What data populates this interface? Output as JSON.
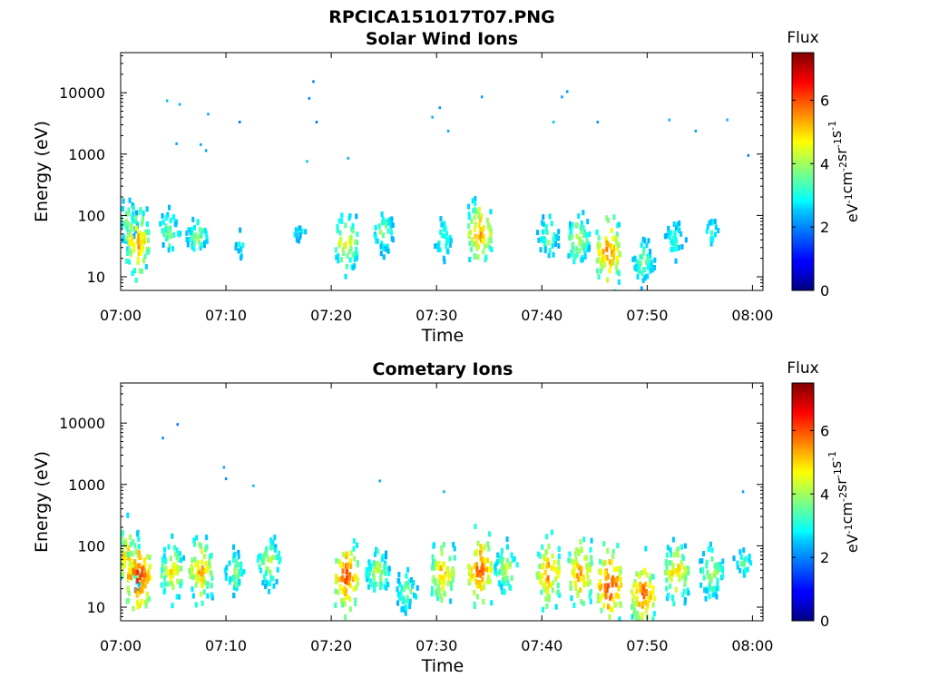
{
  "figure_title": "RPCICA151017T07.PNG",
  "colorbar": {
    "label": "Flux",
    "unit_parts": [
      {
        "text": "eV",
        "sup": false
      },
      {
        "text": "-1",
        "sup": true
      },
      {
        "text": "cm",
        "sup": false
      },
      {
        "text": "-2",
        "sup": true
      },
      {
        "text": "sr",
        "sup": false
      },
      {
        "text": "-1",
        "sup": true
      },
      {
        "text": "s",
        "sup": false
      },
      {
        "text": "-1",
        "sup": true
      }
    ],
    "ticks": [
      "0",
      "2",
      "4",
      "6"
    ],
    "range": [
      0,
      7.5
    ],
    "colormap": "jet"
  },
  "chart_data": [
    {
      "type": "heatmap",
      "title": "Solar Wind Ions",
      "xlabel": "Time",
      "ylabel": "Energy (eV)",
      "ylog": true,
      "ylim": [
        6,
        45000
      ],
      "xlim": [
        "07:00",
        "08:01"
      ],
      "xticks": [
        "07:00",
        "07:10",
        "07:20",
        "07:30",
        "07:40",
        "07:50",
        "08:00"
      ],
      "yticks": [
        "10",
        "100",
        "1000",
        "10000"
      ],
      "blobs": [
        {
          "t": 0.5,
          "e": 90,
          "flux": 4
        },
        {
          "t": 1.5,
          "e": 40,
          "flux": 5.6
        },
        {
          "t": 4.5,
          "e": 60,
          "flux": 4
        },
        {
          "t": 7.2,
          "e": 50,
          "flux": 4
        },
        {
          "t": 11.3,
          "e": 35,
          "flux": 3
        },
        {
          "t": 16.8,
          "e": 60,
          "flux": 3
        },
        {
          "t": 21.3,
          "e": 40,
          "flux": 5
        },
        {
          "t": 24.8,
          "e": 60,
          "flux": 4
        },
        {
          "t": 30.5,
          "e": 45,
          "flux": 3.6
        },
        {
          "t": 34.0,
          "e": 55,
          "flux": 5.6
        },
        {
          "t": 40.5,
          "e": 50,
          "flux": 4
        },
        {
          "t": 43.3,
          "e": 45,
          "flux": 4.5
        },
        {
          "t": 46.2,
          "e": 28,
          "flux": 6
        },
        {
          "t": 49.5,
          "e": 20,
          "flux": 4
        },
        {
          "t": 52.5,
          "e": 45,
          "flux": 3.5
        },
        {
          "t": 56.0,
          "e": 60,
          "flux": 3.2
        }
      ],
      "scatter": [
        {
          "t": 4.3,
          "e": 7800
        },
        {
          "t": 5.5,
          "e": 6800
        },
        {
          "t": 5.2,
          "e": 1550
        },
        {
          "t": 7.5,
          "e": 1500
        },
        {
          "t": 8.2,
          "e": 4700
        },
        {
          "t": 11.2,
          "e": 3500
        },
        {
          "t": 17.8,
          "e": 8500
        },
        {
          "t": 18.2,
          "e": 16000
        },
        {
          "t": 18.5,
          "e": 3500
        },
        {
          "t": 17.6,
          "e": 800
        },
        {
          "t": 21.5,
          "e": 900
        },
        {
          "t": 29.5,
          "e": 4200
        },
        {
          "t": 30.2,
          "e": 6000
        },
        {
          "t": 31.0,
          "e": 2500
        },
        {
          "t": 34.2,
          "e": 9000
        },
        {
          "t": 41.8,
          "e": 9000
        },
        {
          "t": 42.3,
          "e": 11000
        },
        {
          "t": 41.0,
          "e": 3500
        },
        {
          "t": 45.2,
          "e": 3500
        },
        {
          "t": 52.0,
          "e": 3800
        },
        {
          "t": 54.5,
          "e": 2500
        },
        {
          "t": 57.5,
          "e": 3800
        },
        {
          "t": 59.5,
          "e": 1000
        },
        {
          "t": 8.0,
          "e": 1200
        }
      ]
    },
    {
      "type": "heatmap",
      "title": "Cometary Ions",
      "xlabel": "Time",
      "ylabel": "Energy (eV)",
      "ylog": true,
      "ylim": [
        6,
        45000
      ],
      "xlim": [
        "07:00",
        "08:01"
      ],
      "xticks": [
        "07:00",
        "07:10",
        "07:20",
        "07:30",
        "07:40",
        "07:50",
        "08:00"
      ],
      "yticks": [
        "10",
        "100",
        "1000",
        "10000"
      ],
      "blobs": [
        {
          "t": 0.6,
          "e": 70,
          "flux": 5.5
        },
        {
          "t": 1.6,
          "e": 35,
          "flux": 6.5
        },
        {
          "t": 4.8,
          "e": 40,
          "flux": 5
        },
        {
          "t": 7.5,
          "e": 45,
          "flux": 5.5
        },
        {
          "t": 10.8,
          "e": 40,
          "flux": 4
        },
        {
          "t": 14.0,
          "e": 60,
          "flux": 4.5
        },
        {
          "t": 21.3,
          "e": 35,
          "flux": 6.2
        },
        {
          "t": 24.3,
          "e": 40,
          "flux": 4.5
        },
        {
          "t": 27.0,
          "e": 20,
          "flux": 4
        },
        {
          "t": 30.5,
          "e": 40,
          "flux": 5.5
        },
        {
          "t": 34.0,
          "e": 45,
          "flux": 6.2
        },
        {
          "t": 36.5,
          "e": 45,
          "flux": 4.5
        },
        {
          "t": 40.5,
          "e": 40,
          "flux": 5.7
        },
        {
          "t": 43.5,
          "e": 40,
          "flux": 5.8
        },
        {
          "t": 46.3,
          "e": 25,
          "flux": 6.5
        },
        {
          "t": 49.5,
          "e": 18,
          "flux": 6
        },
        {
          "t": 52.7,
          "e": 40,
          "flux": 5.3
        },
        {
          "t": 56.0,
          "e": 40,
          "flux": 4.5
        },
        {
          "t": 59.0,
          "e": 60,
          "flux": 3.5
        }
      ],
      "scatter": [
        {
          "t": 3.9,
          "e": 6000
        },
        {
          "t": 5.3,
          "e": 10000
        },
        {
          "t": 9.7,
          "e": 2000
        },
        {
          "t": 9.9,
          "e": 1300
        },
        {
          "t": 12.5,
          "e": 1000
        },
        {
          "t": 24.5,
          "e": 1200
        },
        {
          "t": 30.6,
          "e": 800
        },
        {
          "t": 59.0,
          "e": 800
        }
      ]
    }
  ]
}
